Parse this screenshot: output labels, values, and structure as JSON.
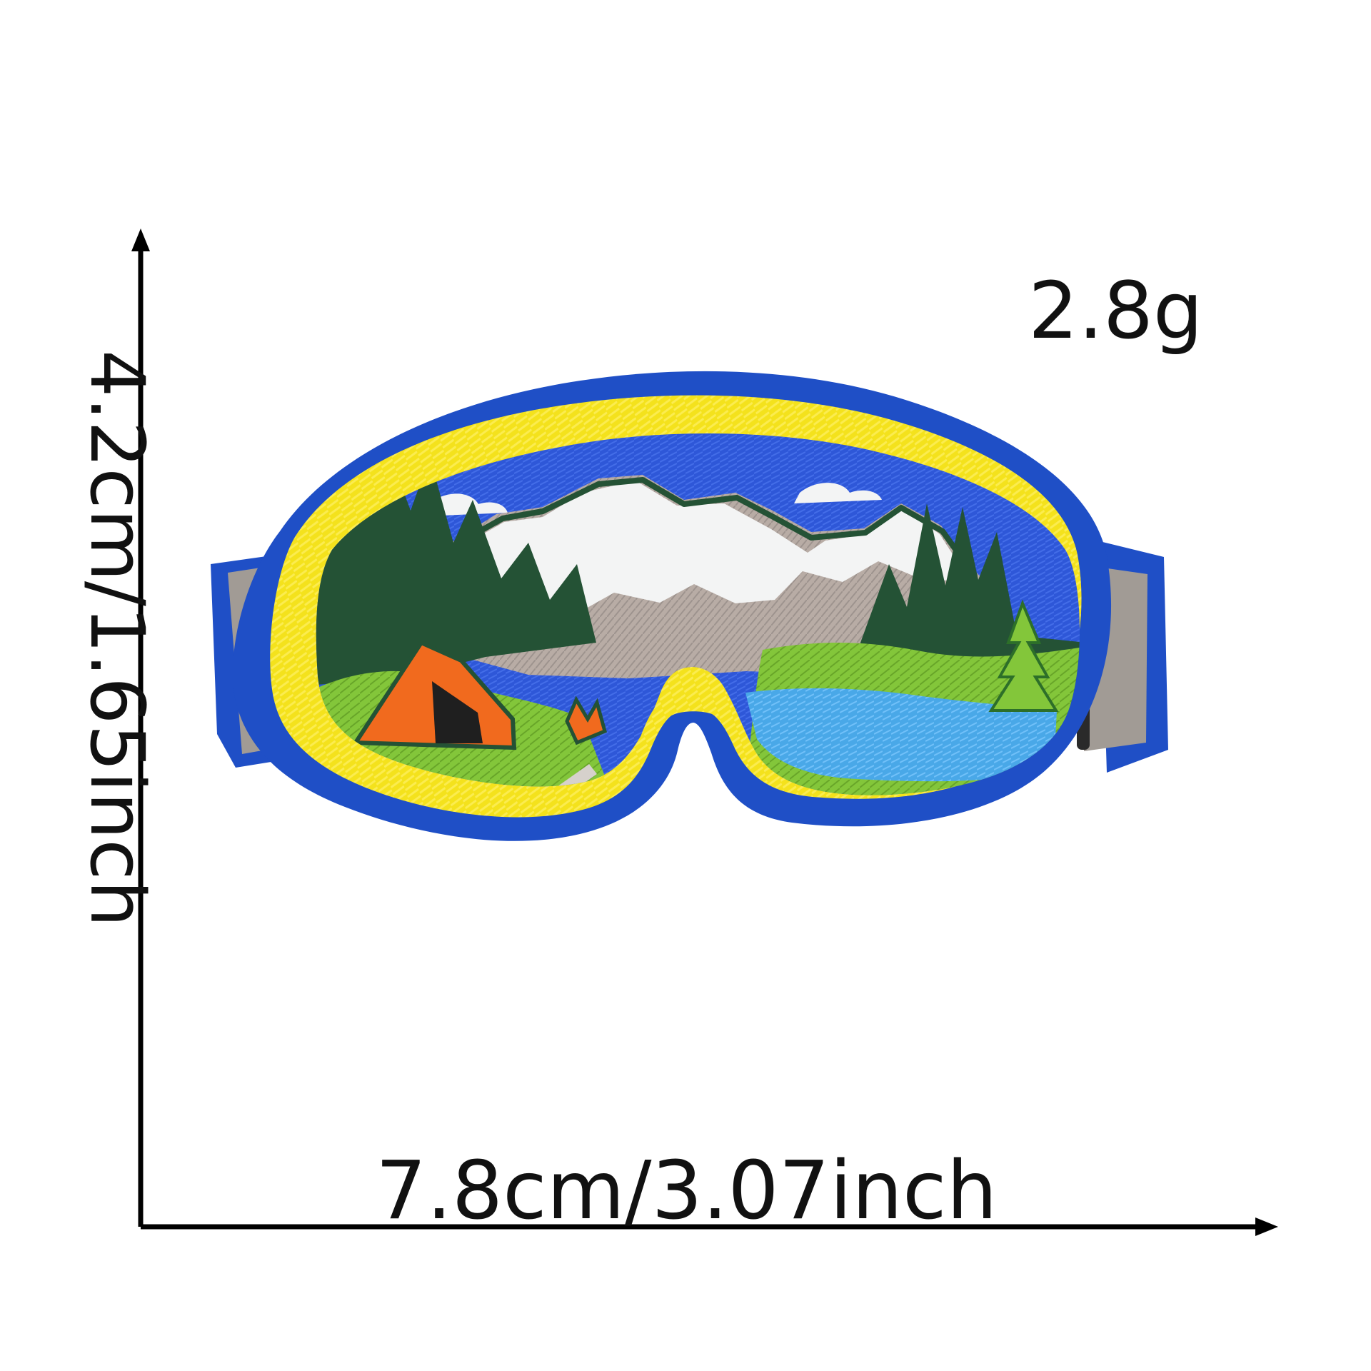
{
  "labels": {
    "weight": "2.8g",
    "height": "4.2cm/1.65inch",
    "width": "7.8cm/3.07inch"
  },
  "colors": {
    "outer_border": "#1f4fc6",
    "frame_yellow": "#f4e21c",
    "strap_gray": "#a19b95",
    "sky_blue": "#2e57d8",
    "snow_white": "#f3f4f4",
    "mountain_gray": "#b8aca5",
    "forest_dark": "#245235",
    "grass_green": "#83c63a",
    "lake_blue": "#49a8e8",
    "tent_orange": "#f16a1e"
  },
  "icons": {
    "image": "ski-goggles-patch-image",
    "vertical_arrow": "up-arrow-icon",
    "horizontal_arrow": "right-arrow-icon"
  }
}
